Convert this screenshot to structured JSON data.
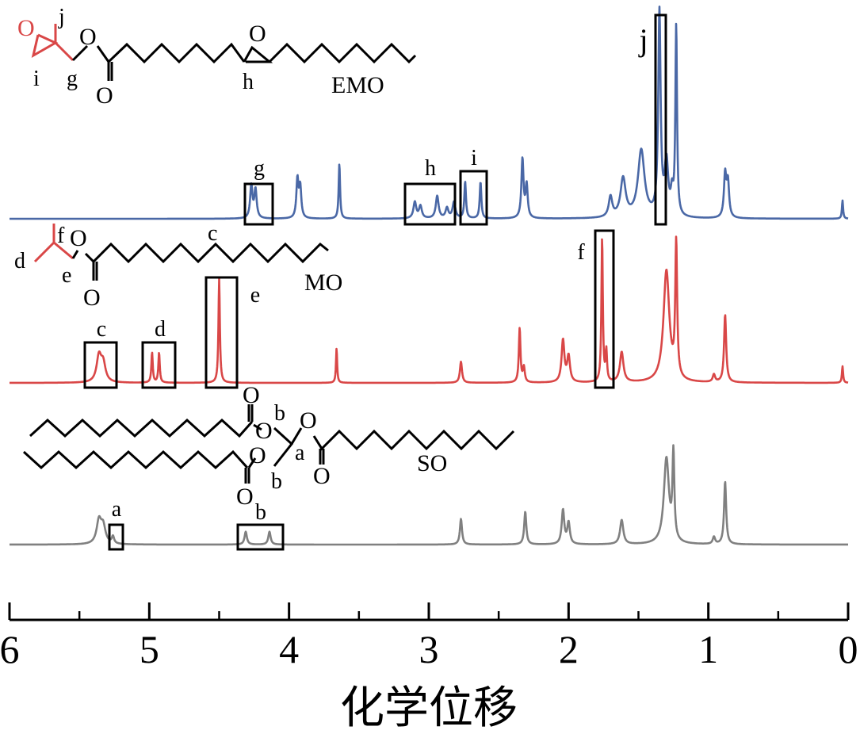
{
  "chart_data": {
    "type": "line",
    "xlabel": "化学位移",
    "xlim": [
      6,
      0
    ],
    "x_ticks": [
      "6",
      "5",
      "4",
      "3",
      "2",
      "1",
      "0"
    ],
    "series": [
      {
        "name": "EMO",
        "color": "#4a68a6",
        "peaks": [
          {
            "x": 4.27,
            "h": 0.16,
            "w": 0.01
          },
          {
            "x": 4.24,
            "h": 0.14,
            "w": 0.01
          },
          {
            "x": 3.94,
            "h": 0.19,
            "w": 0.009
          },
          {
            "x": 3.92,
            "h": 0.15,
            "w": 0.009
          },
          {
            "x": 3.64,
            "h": 0.27,
            "w": 0.006
          },
          {
            "x": 3.1,
            "h": 0.08,
            "w": 0.012
          },
          {
            "x": 3.06,
            "h": 0.06,
            "w": 0.012
          },
          {
            "x": 2.94,
            "h": 0.11,
            "w": 0.012
          },
          {
            "x": 2.87,
            "h": 0.05,
            "w": 0.012
          },
          {
            "x": 2.82,
            "h": 0.08,
            "w": 0.012
          },
          {
            "x": 2.74,
            "h": 0.18,
            "w": 0.007
          },
          {
            "x": 2.63,
            "h": 0.18,
            "w": 0.007
          },
          {
            "x": 2.33,
            "h": 0.29,
            "w": 0.009
          },
          {
            "x": 2.3,
            "h": 0.16,
            "w": 0.009
          },
          {
            "x": 1.7,
            "h": 0.1,
            "w": 0.015
          },
          {
            "x": 1.61,
            "h": 0.19,
            "w": 0.022
          },
          {
            "x": 1.48,
            "h": 0.33,
            "w": 0.028
          },
          {
            "x": 1.35,
            "h": 1.0,
            "w": 0.01
          },
          {
            "x": 1.3,
            "h": 0.26,
            "w": 0.015
          },
          {
            "x": 1.26,
            "h": 0.1,
            "w": 0.01
          },
          {
            "x": 1.23,
            "h": 0.93,
            "w": 0.007
          },
          {
            "x": 0.88,
            "h": 0.21,
            "w": 0.01
          },
          {
            "x": 0.86,
            "h": 0.17,
            "w": 0.01
          },
          {
            "x": 0.04,
            "h": 0.09,
            "w": 0.005
          }
        ]
      },
      {
        "name": "MO",
        "color": "#d94747",
        "peaks": [
          {
            "x": 5.36,
            "h": 0.17,
            "w": 0.02
          },
          {
            "x": 5.33,
            "h": 0.12,
            "w": 0.02
          },
          {
            "x": 4.98,
            "h": 0.2,
            "w": 0.006
          },
          {
            "x": 4.93,
            "h": 0.2,
            "w": 0.006
          },
          {
            "x": 4.5,
            "h": 0.69,
            "w": 0.006
          },
          {
            "x": 3.66,
            "h": 0.23,
            "w": 0.005
          },
          {
            "x": 2.77,
            "h": 0.14,
            "w": 0.009
          },
          {
            "x": 2.35,
            "h": 0.36,
            "w": 0.007
          },
          {
            "x": 2.32,
            "h": 0.1,
            "w": 0.008
          },
          {
            "x": 2.04,
            "h": 0.28,
            "w": 0.012
          },
          {
            "x": 2.0,
            "h": 0.17,
            "w": 0.012
          },
          {
            "x": 1.76,
            "h": 0.96,
            "w": 0.006
          },
          {
            "x": 1.73,
            "h": 0.2,
            "w": 0.006
          },
          {
            "x": 1.62,
            "h": 0.2,
            "w": 0.015
          },
          {
            "x": 1.3,
            "h": 0.74,
            "w": 0.025
          },
          {
            "x": 1.23,
            "h": 0.89,
            "w": 0.008
          },
          {
            "x": 0.88,
            "h": 0.45,
            "w": 0.009
          },
          {
            "x": 0.96,
            "h": 0.05,
            "w": 0.01
          },
          {
            "x": 0.04,
            "h": 0.11,
            "w": 0.005
          }
        ]
      },
      {
        "name": "SO",
        "color": "#808080",
        "peaks": [
          {
            "x": 5.36,
            "h": 0.16,
            "w": 0.02
          },
          {
            "x": 5.33,
            "h": 0.12,
            "w": 0.02
          },
          {
            "x": 5.26,
            "h": 0.05,
            "w": 0.01
          },
          {
            "x": 4.31,
            "h": 0.09,
            "w": 0.01
          },
          {
            "x": 4.14,
            "h": 0.09,
            "w": 0.01
          },
          {
            "x": 2.77,
            "h": 0.18,
            "w": 0.009
          },
          {
            "x": 2.31,
            "h": 0.23,
            "w": 0.009
          },
          {
            "x": 2.04,
            "h": 0.24,
            "w": 0.011
          },
          {
            "x": 2.0,
            "h": 0.15,
            "w": 0.011
          },
          {
            "x": 1.62,
            "h": 0.17,
            "w": 0.014
          },
          {
            "x": 1.3,
            "h": 0.6,
            "w": 0.022
          },
          {
            "x": 1.25,
            "h": 0.6,
            "w": 0.008
          },
          {
            "x": 0.88,
            "h": 0.44,
            "w": 0.009
          },
          {
            "x": 0.96,
            "h": 0.05,
            "w": 0.01
          }
        ]
      }
    ],
    "annotations": {
      "EMO": [
        "g",
        "h",
        "i",
        "j"
      ],
      "MO": [
        "c",
        "d",
        "e",
        "f"
      ],
      "SO": [
        "a",
        "b"
      ]
    }
  },
  "structures": {
    "emo": {
      "name": "EMO",
      "atom_o_epoxide_red": "O",
      "atom_o_ester": "O",
      "atom_o_carbonyl": "O",
      "atom_o_epoxide_mid": "O",
      "label_i": "i",
      "label_j": "j",
      "label_g": "g",
      "label_h": "h"
    },
    "mo": {
      "name": "MO",
      "atom_o_ester": "O",
      "atom_o_carbonyl": "O",
      "label_d": "d",
      "label_e": "e",
      "label_f": "f",
      "label_c": "c"
    },
    "so": {
      "name": "SO",
      "atom_o_top_carbonyl": "O",
      "atom_o_top_ester": "O",
      "atom_o_bottom_ester": "O",
      "atom_o_bottom_carbonyl": "O",
      "atom_o_right_ester": "O",
      "atom_o_right_carbonyl": "O",
      "label_a": "a",
      "label_b_top": "b",
      "label_b_bottom": "b"
    }
  },
  "boxes": {
    "g": "g",
    "h": "h",
    "i": "i",
    "j": "j",
    "c": "c",
    "d": "d",
    "e": "e",
    "f": "f",
    "a": "a",
    "b": "b"
  }
}
